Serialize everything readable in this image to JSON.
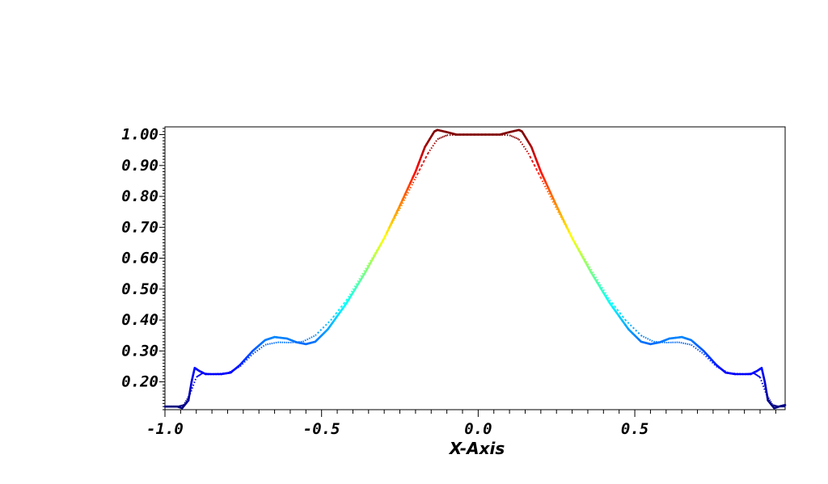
{
  "chart_data": {
    "type": "line",
    "xlabel": "X-Axis",
    "ylabel": "",
    "title": "",
    "xlim": [
      -1.0,
      0.98
    ],
    "ylim": [
      0.11,
      1.025
    ],
    "x_ticks": [
      -1.0,
      -0.5,
      0.0,
      0.5
    ],
    "x_tick_labels": [
      "-1.0",
      "-0.5",
      "0.0",
      "0.5"
    ],
    "y_ticks": [
      0.2,
      0.3,
      0.4,
      0.5,
      0.6,
      0.7,
      0.8,
      0.9,
      1.0
    ],
    "y_tick_labels": [
      "0.20",
      "0.30",
      "0.40",
      "0.50",
      "0.60",
      "0.70",
      "0.80",
      "0.90",
      "1.00"
    ],
    "grid": false,
    "legend": "none",
    "colormap": "jet (color mapped to y value)",
    "series": [
      {
        "style": "solid",
        "points": [
          [
            -1.0,
            0.12
          ],
          [
            -0.96,
            0.12
          ],
          [
            -0.945,
            0.115
          ],
          [
            -0.925,
            0.14
          ],
          [
            -0.915,
            0.2
          ],
          [
            -0.905,
            0.245
          ],
          [
            -0.89,
            0.235
          ],
          [
            -0.87,
            0.225
          ],
          [
            -0.82,
            0.225
          ],
          [
            -0.79,
            0.23
          ],
          [
            -0.76,
            0.255
          ],
          [
            -0.72,
            0.3
          ],
          [
            -0.68,
            0.335
          ],
          [
            -0.65,
            0.345
          ],
          [
            -0.61,
            0.34
          ],
          [
            -0.58,
            0.328
          ],
          [
            -0.55,
            0.322
          ],
          [
            -0.52,
            0.33
          ],
          [
            -0.48,
            0.37
          ],
          [
            -0.42,
            0.455
          ],
          [
            -0.36,
            0.555
          ],
          [
            -0.3,
            0.665
          ],
          [
            -0.25,
            0.77
          ],
          [
            -0.2,
            0.88
          ],
          [
            -0.17,
            0.96
          ],
          [
            -0.14,
            1.01
          ],
          [
            -0.13,
            1.015
          ],
          [
            -0.1,
            1.008
          ],
          [
            -0.07,
            1.0
          ],
          [
            0.0,
            1.0
          ],
          [
            0.07,
            1.0
          ],
          [
            0.1,
            1.008
          ],
          [
            0.13,
            1.015
          ],
          [
            0.14,
            1.01
          ],
          [
            0.17,
            0.96
          ],
          [
            0.2,
            0.88
          ],
          [
            0.25,
            0.77
          ],
          [
            0.3,
            0.665
          ],
          [
            0.36,
            0.555
          ],
          [
            0.42,
            0.455
          ],
          [
            0.48,
            0.37
          ],
          [
            0.52,
            0.33
          ],
          [
            0.55,
            0.322
          ],
          [
            0.58,
            0.328
          ],
          [
            0.61,
            0.34
          ],
          [
            0.65,
            0.345
          ],
          [
            0.68,
            0.335
          ],
          [
            0.72,
            0.3
          ],
          [
            0.76,
            0.255
          ],
          [
            0.79,
            0.23
          ],
          [
            0.82,
            0.225
          ],
          [
            0.87,
            0.225
          ],
          [
            0.89,
            0.235
          ],
          [
            0.905,
            0.245
          ],
          [
            0.915,
            0.2
          ],
          [
            0.925,
            0.14
          ],
          [
            0.945,
            0.115
          ],
          [
            0.96,
            0.12
          ],
          [
            0.98,
            0.125
          ]
        ]
      },
      {
        "style": "dotted",
        "points": [
          [
            -1.0,
            0.12
          ],
          [
            -0.96,
            0.12
          ],
          [
            -0.94,
            0.125
          ],
          [
            -0.92,
            0.16
          ],
          [
            -0.9,
            0.215
          ],
          [
            -0.88,
            0.228
          ],
          [
            -0.85,
            0.225
          ],
          [
            -0.8,
            0.228
          ],
          [
            -0.76,
            0.25
          ],
          [
            -0.72,
            0.29
          ],
          [
            -0.68,
            0.32
          ],
          [
            -0.64,
            0.328
          ],
          [
            -0.6,
            0.327
          ],
          [
            -0.56,
            0.33
          ],
          [
            -0.52,
            0.35
          ],
          [
            -0.47,
            0.4
          ],
          [
            -0.42,
            0.465
          ],
          [
            -0.36,
            0.565
          ],
          [
            -0.3,
            0.665
          ],
          [
            -0.25,
            0.76
          ],
          [
            -0.2,
            0.86
          ],
          [
            -0.16,
            0.94
          ],
          [
            -0.13,
            0.985
          ],
          [
            -0.1,
            0.998
          ],
          [
            -0.05,
            1.0
          ],
          [
            0.0,
            1.0
          ],
          [
            0.05,
            1.0
          ],
          [
            0.1,
            0.998
          ],
          [
            0.13,
            0.985
          ],
          [
            0.16,
            0.94
          ],
          [
            0.2,
            0.86
          ],
          [
            0.25,
            0.76
          ],
          [
            0.3,
            0.665
          ],
          [
            0.36,
            0.565
          ],
          [
            0.42,
            0.465
          ],
          [
            0.47,
            0.4
          ],
          [
            0.52,
            0.35
          ],
          [
            0.56,
            0.33
          ],
          [
            0.6,
            0.327
          ],
          [
            0.64,
            0.328
          ],
          [
            0.68,
            0.32
          ],
          [
            0.72,
            0.29
          ],
          [
            0.76,
            0.25
          ],
          [
            0.8,
            0.228
          ],
          [
            0.85,
            0.225
          ],
          [
            0.88,
            0.228
          ],
          [
            0.9,
            0.215
          ],
          [
            0.92,
            0.16
          ],
          [
            0.94,
            0.125
          ],
          [
            0.96,
            0.12
          ],
          [
            0.98,
            0.12
          ]
        ]
      }
    ]
  }
}
